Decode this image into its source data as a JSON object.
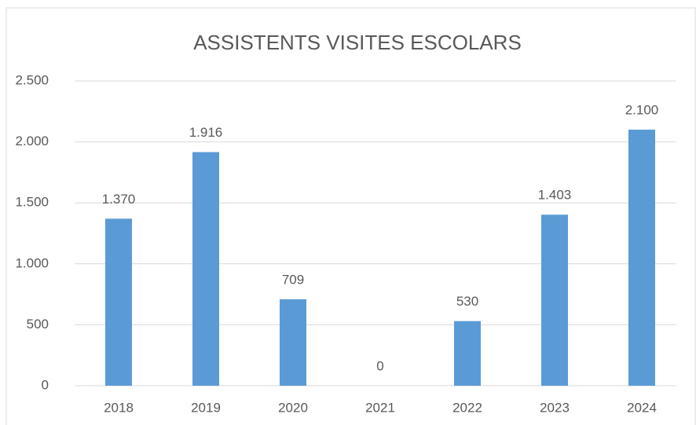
{
  "chart_data": {
    "type": "bar",
    "title": "ASSISTENTS VISITES ESCOLARS",
    "categories": [
      "2018",
      "2019",
      "2020",
      "2021",
      "2022",
      "2023",
      "2024"
    ],
    "values": [
      1370,
      1916,
      709,
      0,
      530,
      1403,
      2100
    ],
    "value_labels": [
      "1.370",
      "1.916",
      "709",
      "0",
      "530",
      "1.403",
      "2.100"
    ],
    "color": "#5b9bd5",
    "ylim": [
      0,
      2500
    ],
    "yticks": [
      0,
      500,
      {
        "value": 1000,
        "label": "1.000"
      },
      {
        "value": 1500,
        "label": "1.500"
      },
      {
        "value": 2000,
        "label": "2.000"
      },
      {
        "value": 2500,
        "label": "2.500"
      }
    ],
    "grid": true
  }
}
